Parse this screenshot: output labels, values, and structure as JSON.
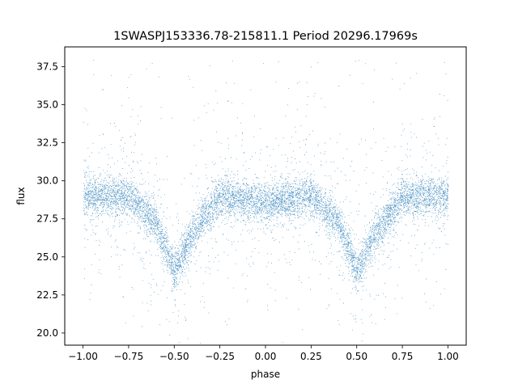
{
  "chart_data": {
    "type": "scatter",
    "title": "1SWASPJ153336.78-215811.1 Period 20296.17969s",
    "xlabel": "phase",
    "ylabel": "flux",
    "xlim": [
      -1.1,
      1.1
    ],
    "ylim": [
      19.2,
      38.8
    ],
    "xticks": [
      -1.0,
      -0.75,
      -0.5,
      -0.25,
      0.0,
      0.25,
      0.5,
      0.75,
      1.0
    ],
    "xtick_labels": [
      "−1.00",
      "−0.75",
      "−0.50",
      "−0.25",
      "0.00",
      "0.25",
      "0.50",
      "0.75",
      "1.00"
    ],
    "yticks": [
      20.0,
      22.5,
      25.0,
      27.5,
      30.0,
      32.5,
      35.0,
      37.5
    ],
    "ytick_labels": [
      "20.0",
      "22.5",
      "25.0",
      "27.5",
      "30.0",
      "32.5",
      "35.0",
      "37.5"
    ],
    "grid": false,
    "marker_color": "#1f77b4",
    "series": [
      {
        "description_points": [
          {
            "phase": -1.0,
            "flux": 29.0
          },
          {
            "phase": -0.75,
            "flux": 29.0
          },
          {
            "phase": -0.6,
            "flux": 27.2
          },
          {
            "phase": -0.5,
            "flux": 24.0
          },
          {
            "phase": -0.4,
            "flux": 26.5
          },
          {
            "phase": -0.25,
            "flux": 29.0
          },
          {
            "phase": 0.0,
            "flux": 28.5
          },
          {
            "phase": 0.25,
            "flux": 29.0
          },
          {
            "phase": 0.4,
            "flux": 27.2
          },
          {
            "phase": 0.5,
            "flux": 24.0
          },
          {
            "phase": 0.6,
            "flux": 26.5
          },
          {
            "phase": 0.75,
            "flux": 29.0
          },
          {
            "phase": 1.0,
            "flux": 29.0
          }
        ]
      }
    ]
  }
}
